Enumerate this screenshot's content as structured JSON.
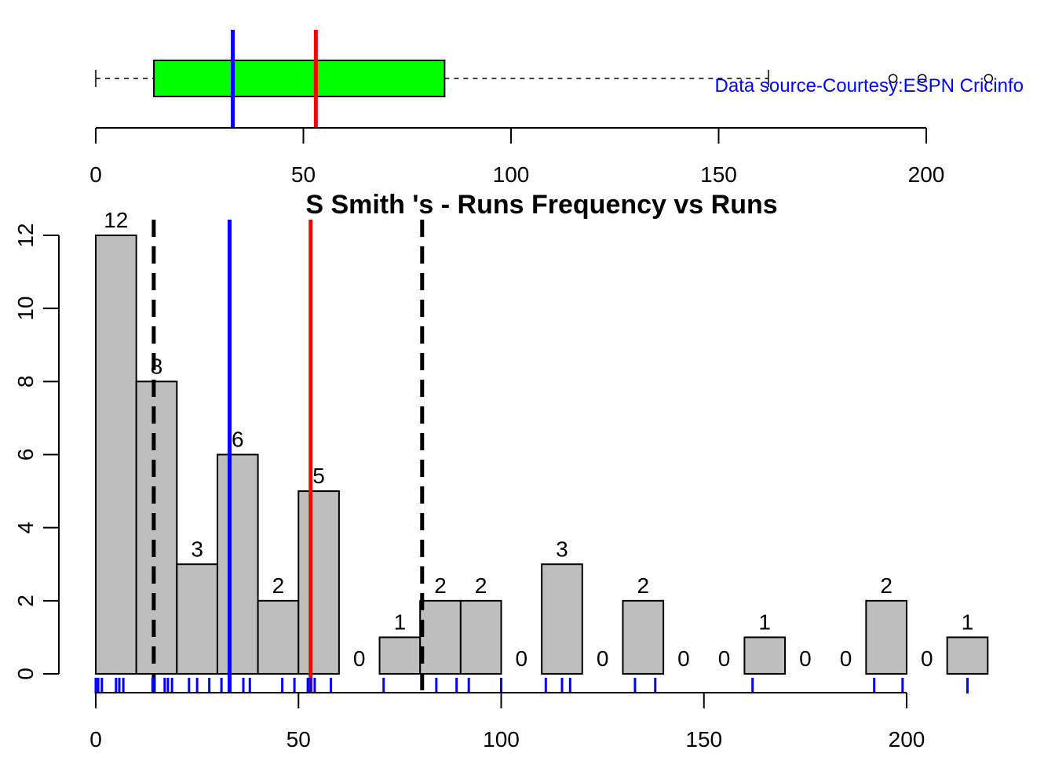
{
  "chart_data": [
    {
      "type": "boxplot",
      "whisker_low": 0,
      "q1": 14,
      "q3": 84,
      "whisker_high": 162,
      "outliers": [
        192,
        199,
        215
      ],
      "box_color": "#00ff00",
      "xlim": [
        0,
        200
      ],
      "xticks": [
        0,
        50,
        100,
        150,
        200
      ],
      "lines": [
        {
          "value": 33,
          "color": "#0000ff"
        },
        {
          "value": 53,
          "color": "#ff0000"
        }
      ],
      "annotation": "Data source-Courtesy:ESPN Cricinfo",
      "annotation_color": "#0000ff"
    },
    {
      "type": "histogram",
      "title": "S Smith 's  - Runs Frequency vs Runs",
      "bins": [
        0,
        10,
        20,
        30,
        40,
        50,
        60,
        70,
        80,
        90,
        100,
        110,
        120,
        130,
        140,
        150,
        160,
        170,
        180,
        190,
        200,
        210,
        220
      ],
      "values": [
        12,
        8,
        3,
        6,
        2,
        5,
        0,
        1,
        2,
        2,
        0,
        3,
        0,
        2,
        0,
        0,
        1,
        0,
        0,
        2,
        0,
        1
      ],
      "color": "#bebebe",
      "xlim": [
        0,
        200
      ],
      "xticks": [
        0,
        50,
        100,
        150,
        200
      ],
      "ylim": [
        0,
        12
      ],
      "yticks": [
        0,
        2,
        4,
        6,
        8,
        10,
        12
      ],
      "lines": [
        {
          "value": 14.3,
          "color": "#000000",
          "dashed": true
        },
        {
          "value": 80.5,
          "color": "#000000",
          "dashed": true
        },
        {
          "value": 33,
          "color": "#0000ff"
        },
        {
          "value": 53,
          "color": "#ff0000"
        }
      ],
      "rug": {
        "color": "#0000ff",
        "values": [
          0,
          0.6,
          1.5,
          5,
          5.8,
          6.8,
          14,
          14.5,
          17,
          17.8,
          18.8,
          23,
          25,
          28,
          31,
          36.4,
          38,
          46,
          49,
          52.3,
          53,
          54,
          58,
          71,
          84,
          89,
          92,
          100,
          111,
          115,
          117,
          133,
          138,
          162,
          192,
          199,
          215
        ]
      }
    }
  ]
}
